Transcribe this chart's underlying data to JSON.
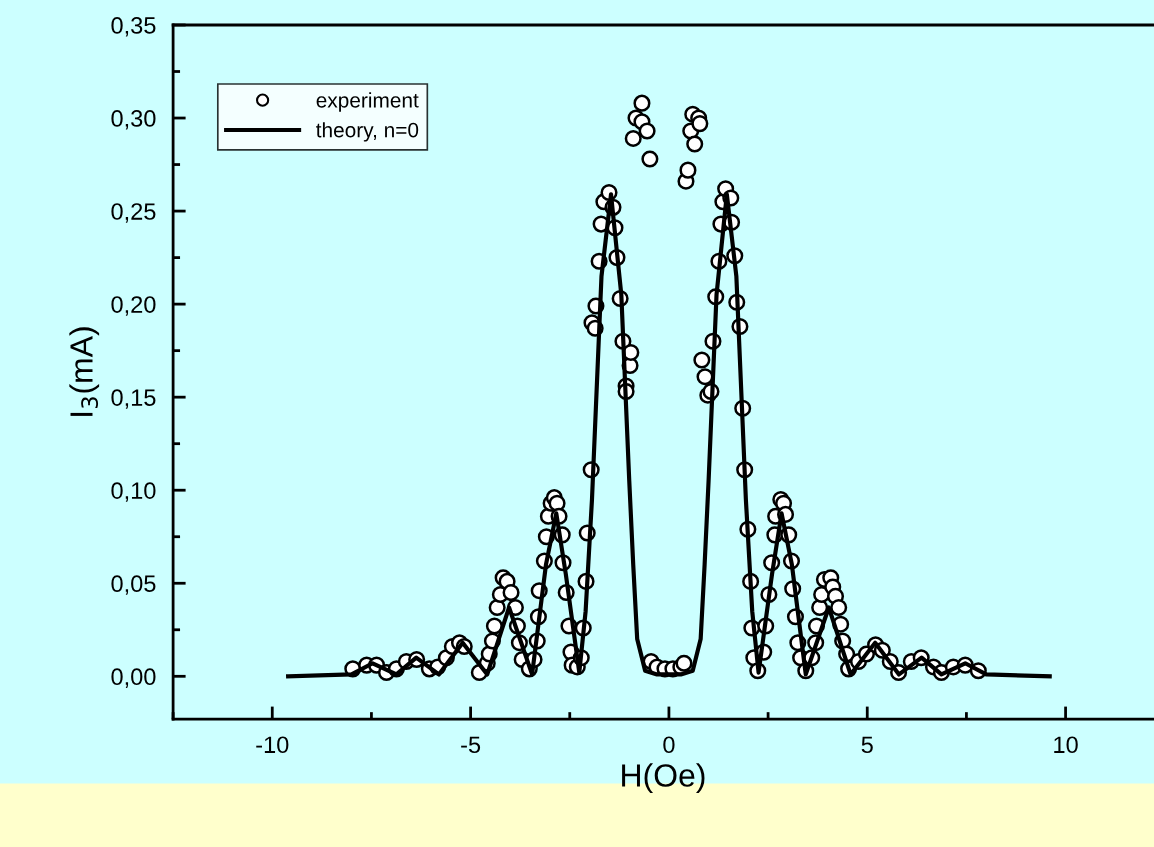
{
  "chart_data": {
    "type": "scatter",
    "xlabel": "H(Oe)",
    "ylabel": "I$_{3}$(mA)",
    "xlim": [
      -12.5,
      12.2
    ],
    "ylim": [
      -0.023,
      0.35
    ],
    "xticks": [
      {
        "value": -10,
        "label": "-10"
      },
      {
        "value": -5,
        "label": "-5"
      },
      0,
      5,
      10
    ],
    "yticks": [
      {
        "value": 0,
        "label": "0,00"
      },
      {
        "value": 0.05,
        "label": "0,05"
      },
      {
        "value": 0.1,
        "label": "0,10"
      },
      {
        "value": 0.15,
        "label": "0,15"
      },
      {
        "value": 0.2,
        "label": "0,20"
      },
      {
        "value": 0.25,
        "label": "0,25"
      },
      {
        "value": 0.3,
        "label": "0,30"
      },
      {
        "value": 0.35,
        "label": "0,35"
      }
    ],
    "grid": false,
    "legend": "top left",
    "series": [
      {
        "name": "experiment",
        "type": "scatter",
        "marker": "circle",
        "color": "#ffffff",
        "x": [
          -7.97,
          -7.62,
          -7.37,
          -7.12,
          -6.87,
          -6.62,
          -6.36,
          -6.04,
          -5.83,
          -5.61,
          -5.46,
          -5.28,
          -5.16,
          -4.78,
          -4.58,
          -4.53,
          -4.45,
          -4.4,
          -4.33,
          -4.25,
          -4.18,
          -4.08,
          -3.98,
          -3.87,
          -3.82,
          -3.77,
          -3.7,
          -3.52,
          -3.4,
          -3.32,
          -3.29,
          -3.27,
          -3.14,
          -3.09,
          -3.04,
          -2.97,
          -2.89,
          -2.82,
          -2.77,
          -2.69,
          -2.67,
          -2.59,
          -2.52,
          -2.47,
          -2.44,
          -2.31,
          -2.21,
          -2.16,
          -2.09,
          -2.06,
          -1.96,
          -1.94,
          -1.86,
          -1.84,
          -1.76,
          -1.71,
          -1.64,
          -1.51,
          -1.41,
          -1.36,
          -1.31,
          -1.23,
          -1.16,
          -1.08,
          -1.08,
          -0.98,
          -0.96,
          -0.9,
          -0.83,
          -0.68,
          -0.68,
          -0.55,
          -0.48,
          -0.45,
          -0.3,
          -0.1,
          0.1,
          0.3,
          0.38,
          0.43,
          0.48,
          0.55,
          0.6,
          0.65,
          0.75,
          0.78,
          0.83,
          0.91,
          0.98,
          1.06,
          1.11,
          1.18,
          1.26,
          1.31,
          1.36,
          1.43,
          1.56,
          1.58,
          1.66,
          1.71,
          1.79,
          1.86,
          1.91,
          1.99,
          2.06,
          2.09,
          2.14,
          2.24,
          2.39,
          2.44,
          2.52,
          2.59,
          2.67,
          2.69,
          2.82,
          2.89,
          2.94,
          3.02,
          3.09,
          3.12,
          3.19,
          3.25,
          3.32,
          3.45,
          3.6,
          3.7,
          3.72,
          3.8,
          3.85,
          3.92,
          4.08,
          4.13,
          4.2,
          4.28,
          4.33,
          4.38,
          4.48,
          4.53,
          4.78,
          4.98,
          5.21,
          5.38,
          5.58,
          5.79,
          6.11,
          6.36,
          6.67,
          6.87,
          7.17,
          7.47,
          7.8
        ],
        "values": [
          0.004,
          0.006,
          0.006,
          0.002,
          0.004,
          0.008,
          0.009,
          0.004,
          0.005,
          0.01,
          0.016,
          0.018,
          0.016,
          0.002,
          0.007,
          0.012,
          0.019,
          0.027,
          0.037,
          0.044,
          0.053,
          0.051,
          0.045,
          0.037,
          0.027,
          0.018,
          0.009,
          0.004,
          0.009,
          0.019,
          0.032,
          0.046,
          0.062,
          0.075,
          0.086,
          0.093,
          0.096,
          0.093,
          0.086,
          0.076,
          0.061,
          0.045,
          0.027,
          0.013,
          0.006,
          0.005,
          0.01,
          0.026,
          0.051,
          0.077,
          0.111,
          0.19,
          0.187,
          0.199,
          0.223,
          0.243,
          0.255,
          0.26,
          0.252,
          0.241,
          0.225,
          0.203,
          0.18,
          0.156,
          0.153,
          0.167,
          0.174,
          0.289,
          0.3,
          0.308,
          0.298,
          0.293,
          0.278,
          0.008,
          0.005,
          0.004,
          0.004,
          0.005,
          0.007,
          0.266,
          0.272,
          0.293,
          0.302,
          0.286,
          0.3,
          0.297,
          0.17,
          0.161,
          0.151,
          0.153,
          0.18,
          0.204,
          0.223,
          0.243,
          0.255,
          0.262,
          0.257,
          0.244,
          0.226,
          0.201,
          0.188,
          0.144,
          0.111,
          0.079,
          0.051,
          0.026,
          0.01,
          0.003,
          0.013,
          0.027,
          0.044,
          0.061,
          0.076,
          0.086,
          0.095,
          0.093,
          0.087,
          0.076,
          0.062,
          0.047,
          0.032,
          0.018,
          0.01,
          0.003,
          0.01,
          0.018,
          0.027,
          0.037,
          0.044,
          0.052,
          0.053,
          0.048,
          0.043,
          0.037,
          0.028,
          0.019,
          0.012,
          0.004,
          0.008,
          0.012,
          0.017,
          0.014,
          0.008,
          0.002,
          0.008,
          0.01,
          0.005,
          0.002,
          0.005,
          0.006,
          0.003
        ]
      },
      {
        "name": "theory, n=0",
        "type": "line",
        "marker": "none",
        "line_style": "solid",
        "color": "#000000",
        "x": [
          -9.6,
          -8.0,
          -7.47,
          -6.87,
          -6.37,
          -5.8,
          -5.2,
          -4.58,
          -4.03,
          -3.45,
          -3.1,
          -2.84,
          -2.6,
          -2.26,
          -2.1,
          -1.94,
          -1.7,
          -1.46,
          -1.2,
          -1.0,
          -0.9,
          -0.8,
          -0.6,
          -0.3,
          0,
          0.3,
          0.6,
          0.8,
          0.9,
          1.0,
          1.2,
          1.46,
          1.7,
          1.94,
          2.1,
          2.26,
          2.6,
          2.84,
          3.1,
          3.45,
          4.03,
          4.58,
          5.2,
          5.8,
          6.37,
          6.87,
          7.47,
          8.0,
          9.6
        ],
        "values": [
          0.0,
          0.001,
          0.007,
          0.001,
          0.01,
          0.001,
          0.018,
          0.001,
          0.037,
          0.001,
          0.06,
          0.0876,
          0.055,
          0.002,
          0.035,
          0.095,
          0.215,
          0.259,
          0.205,
          0.105,
          0.06,
          0.02,
          0.003,
          0.001,
          0.001,
          0.001,
          0.003,
          0.02,
          0.06,
          0.105,
          0.205,
          0.259,
          0.215,
          0.095,
          0.035,
          0.002,
          0.055,
          0.0876,
          0.06,
          0.001,
          0.037,
          0.001,
          0.018,
          0.001,
          0.01,
          0.001,
          0.007,
          0.001,
          0.0
        ]
      }
    ]
  }
}
